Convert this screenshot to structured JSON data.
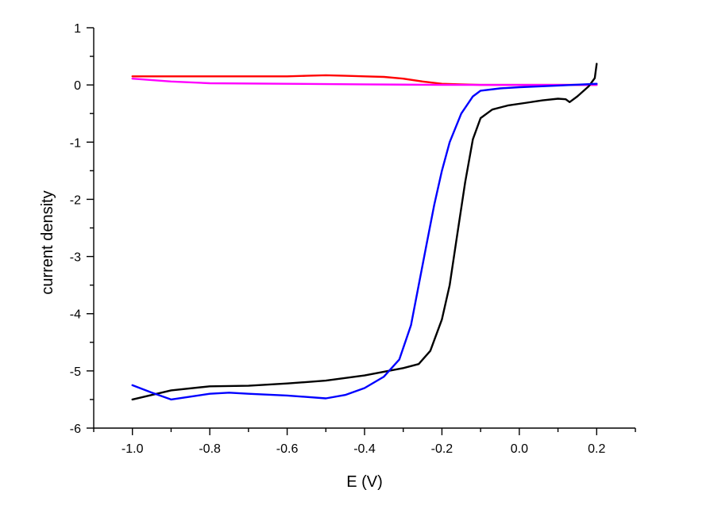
{
  "chart_data": {
    "type": "line",
    "title": "",
    "xlabel": "E (V)",
    "ylabel": "current density",
    "xlim": [
      -1.1,
      0.3
    ],
    "ylim": [
      -6,
      1
    ],
    "x_ticks": [
      -1.0,
      -0.8,
      -0.6,
      -0.4,
      -0.2,
      0.0,
      0.2
    ],
    "x_tick_labels": [
      "-1.0",
      "-0.8",
      "-0.6",
      "-0.4",
      "-0.2",
      "0.0",
      "0.2"
    ],
    "y_ticks": [
      1,
      0,
      -1,
      -2,
      -3,
      -4,
      -5,
      -6
    ],
    "y_tick_labels": [
      "1",
      "0",
      "-1",
      "-2",
      "-3",
      "-4",
      "-5",
      "-6"
    ],
    "grid": false,
    "legend": "none",
    "series": [
      {
        "color": "#ff0000",
        "points": [
          [
            -1.0,
            0.15
          ],
          [
            -0.8,
            0.15
          ],
          [
            -0.6,
            0.15
          ],
          [
            -0.55,
            0.16
          ],
          [
            -0.5,
            0.17
          ],
          [
            -0.45,
            0.16
          ],
          [
            -0.4,
            0.15
          ],
          [
            -0.35,
            0.14
          ],
          [
            -0.3,
            0.11
          ],
          [
            -0.25,
            0.06
          ],
          [
            -0.2,
            0.02
          ],
          [
            -0.15,
            0.01
          ],
          [
            -0.1,
            0.0
          ],
          [
            0.0,
            0.0
          ],
          [
            0.1,
            0.0
          ],
          [
            0.2,
            0.0
          ]
        ]
      },
      {
        "color": "#ff00ff",
        "points": [
          [
            -1.0,
            0.11
          ],
          [
            -0.9,
            0.06
          ],
          [
            -0.8,
            0.03
          ],
          [
            -0.6,
            0.02
          ],
          [
            -0.4,
            0.01
          ],
          [
            -0.2,
            0.0
          ],
          [
            0.0,
            0.0
          ],
          [
            0.1,
            0.0
          ],
          [
            0.2,
            0.0
          ]
        ]
      },
      {
        "color": "#000000",
        "points": [
          [
            -1.0,
            -5.5
          ],
          [
            -0.95,
            -5.42
          ],
          [
            -0.9,
            -5.34
          ],
          [
            -0.8,
            -5.27
          ],
          [
            -0.7,
            -5.26
          ],
          [
            -0.6,
            -5.22
          ],
          [
            -0.5,
            -5.17
          ],
          [
            -0.4,
            -5.08
          ],
          [
            -0.3,
            -4.95
          ],
          [
            -0.26,
            -4.88
          ],
          [
            -0.23,
            -4.65
          ],
          [
            -0.2,
            -4.1
          ],
          [
            -0.18,
            -3.5
          ],
          [
            -0.16,
            -2.6
          ],
          [
            -0.14,
            -1.7
          ],
          [
            -0.12,
            -0.95
          ],
          [
            -0.1,
            -0.58
          ],
          [
            -0.07,
            -0.43
          ],
          [
            -0.03,
            -0.36
          ],
          [
            0.02,
            -0.31
          ],
          [
            0.06,
            -0.27
          ],
          [
            0.1,
            -0.24
          ],
          [
            0.12,
            -0.25
          ],
          [
            0.13,
            -0.3
          ],
          [
            0.15,
            -0.2
          ],
          [
            0.18,
            -0.02
          ],
          [
            0.195,
            0.12
          ],
          [
            0.2,
            0.37
          ]
        ]
      },
      {
        "color": "#0000ff",
        "points": [
          [
            -1.0,
            -5.25
          ],
          [
            -0.95,
            -5.38
          ],
          [
            -0.9,
            -5.5
          ],
          [
            -0.85,
            -5.45
          ],
          [
            -0.8,
            -5.4
          ],
          [
            -0.75,
            -5.38
          ],
          [
            -0.7,
            -5.4
          ],
          [
            -0.6,
            -5.43
          ],
          [
            -0.5,
            -5.48
          ],
          [
            -0.45,
            -5.42
          ],
          [
            -0.4,
            -5.3
          ],
          [
            -0.35,
            -5.1
          ],
          [
            -0.31,
            -4.8
          ],
          [
            -0.28,
            -4.2
          ],
          [
            -0.26,
            -3.5
          ],
          [
            -0.24,
            -2.8
          ],
          [
            -0.22,
            -2.1
          ],
          [
            -0.2,
            -1.5
          ],
          [
            -0.18,
            -1.0
          ],
          [
            -0.15,
            -0.5
          ],
          [
            -0.12,
            -0.2
          ],
          [
            -0.1,
            -0.1
          ],
          [
            -0.05,
            -0.06
          ],
          [
            0.0,
            -0.04
          ],
          [
            0.1,
            -0.01
          ],
          [
            0.2,
            0.02
          ]
        ]
      }
    ]
  }
}
